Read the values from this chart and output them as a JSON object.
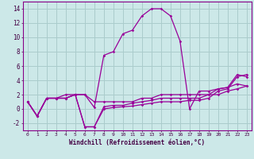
{
  "title": "",
  "xlabel": "Windchill (Refroidissement éolien,°C)",
  "background_color": "#cce8e8",
  "grid_color": "#aacccc",
  "line_color": "#990099",
  "hours": [
    0,
    1,
    2,
    3,
    4,
    5,
    6,
    7,
    8,
    9,
    10,
    11,
    12,
    13,
    14,
    15,
    16,
    17,
    18,
    19,
    20,
    21,
    22,
    23
  ],
  "temp": [
    1,
    -1,
    1.5,
    1.5,
    1.5,
    2,
    2,
    0.2,
    7.5,
    8,
    10.5,
    11,
    13,
    14,
    14,
    13,
    9.5,
    0,
    2.5,
    2.5,
    2.8,
    3,
    4.8,
    4.5
  ],
  "line2": [
    1,
    -1,
    1.5,
    1.5,
    1.5,
    2,
    2,
    1,
    1,
    1,
    1,
    1,
    1.5,
    1.5,
    2,
    2,
    2,
    2,
    2,
    2,
    2,
    2.5,
    2.8,
    3.2
  ],
  "line3": [
    1,
    -1,
    1.5,
    1.5,
    1.5,
    2,
    -2.5,
    -2.5,
    0.3,
    0.5,
    0.5,
    0.8,
    1,
    1.2,
    1.5,
    1.5,
    1.5,
    1.5,
    1.5,
    2.0,
    2.8,
    3.0,
    3.5,
    3.2
  ],
  "line4": [
    1,
    -1,
    1.5,
    1.5,
    2,
    2,
    -2.5,
    -2.5,
    0.0,
    0.2,
    0.3,
    0.4,
    0.6,
    0.8,
    1.0,
    1.0,
    1.0,
    1.2,
    1.2,
    1.5,
    2.5,
    2.8,
    4.5,
    4.8
  ],
  "ylim": [
    -3,
    15
  ],
  "yticks": [
    -2,
    0,
    2,
    4,
    6,
    8,
    10,
    12,
    14
  ],
  "xlim": [
    -0.5,
    23.5
  ]
}
